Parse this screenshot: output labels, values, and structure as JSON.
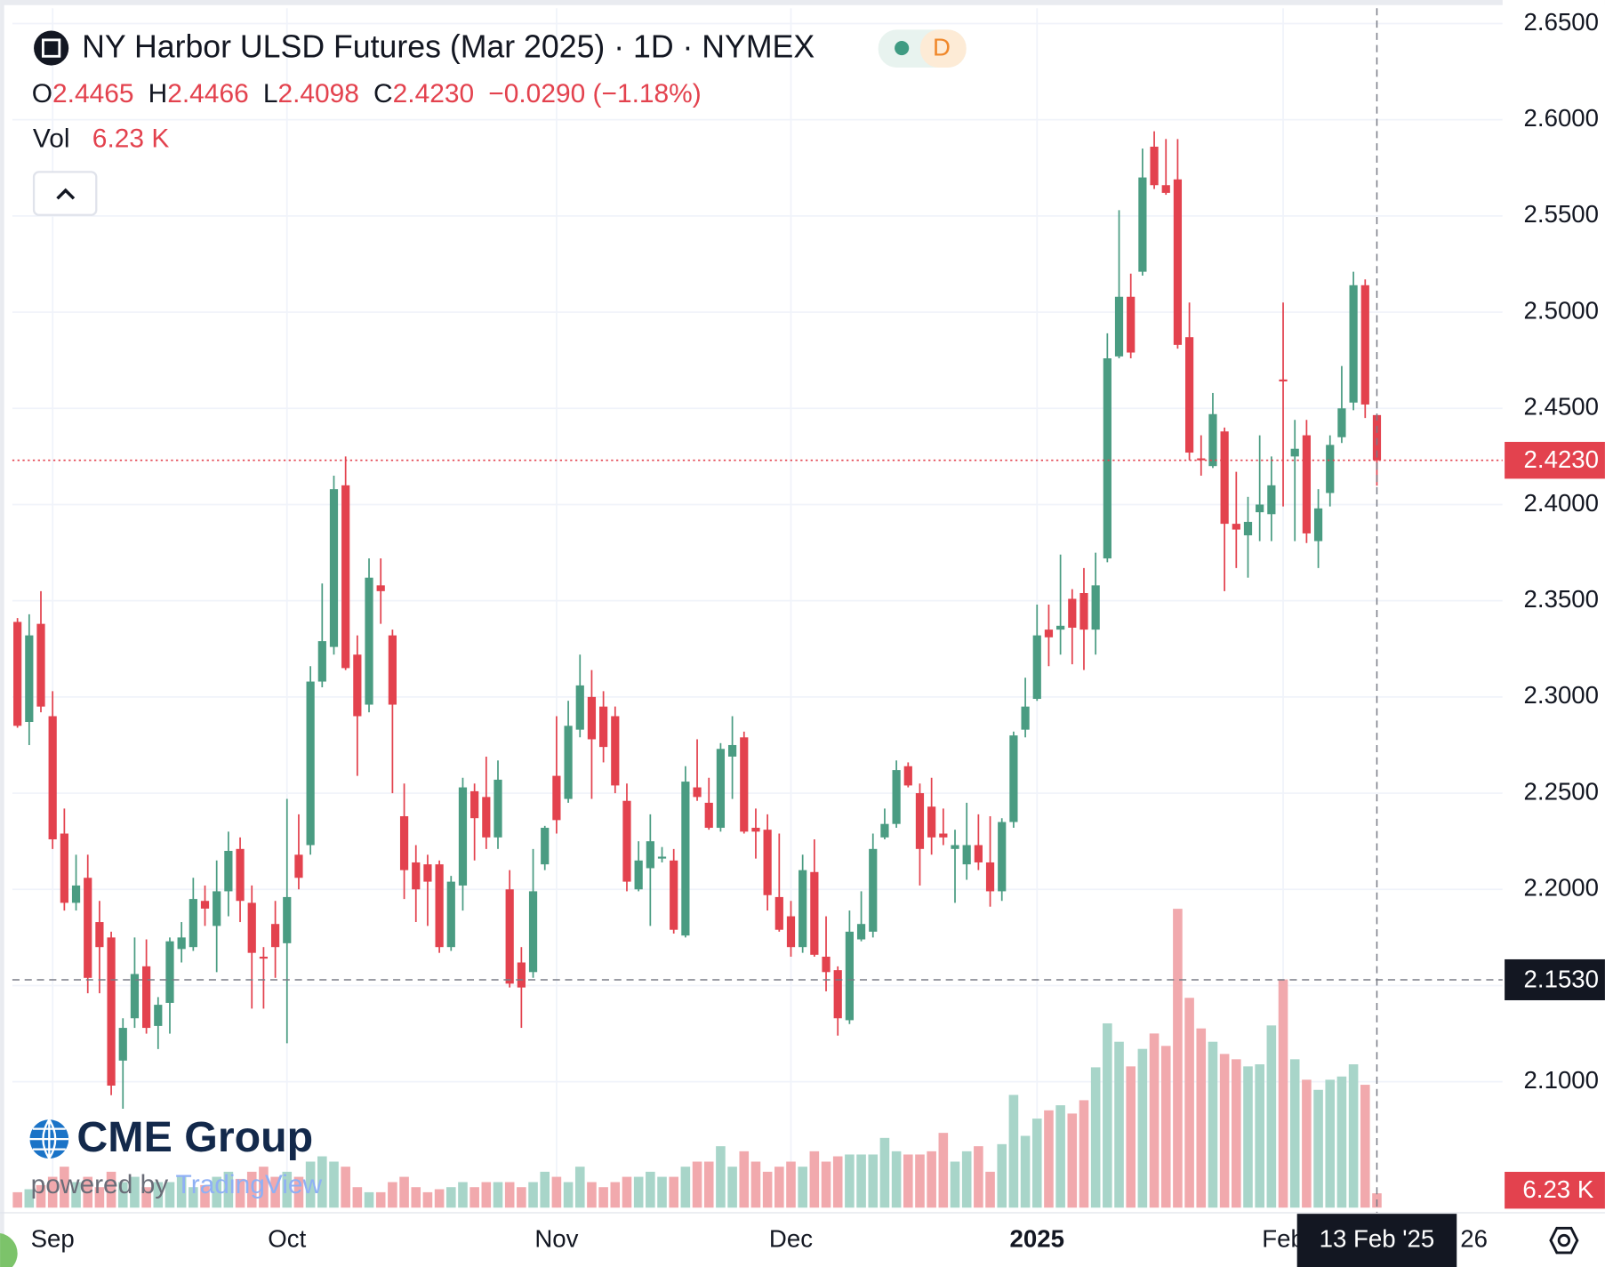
{
  "header": {
    "title": "NY Harbor ULSD Futures (Mar 2025) · 1D · NYMEX",
    "interval_badge": "D",
    "legend": {
      "ohlc": [
        {
          "key": "O",
          "value": "2.4465"
        },
        {
          "key": "H",
          "value": "2.4466"
        },
        {
          "key": "L",
          "value": "2.4098"
        },
        {
          "key": "C",
          "value": "2.4230"
        }
      ],
      "change": "−0.0290 (−1.18%)",
      "vol_key": "Vol"
    }
  },
  "watermark": {
    "logo": "CME Group",
    "powered_by": "powered by",
    "brand": "TradingView"
  },
  "chart_data": {
    "type": "candlestick",
    "up_color": "#4a9c82",
    "down_color": "#e3424e",
    "up_volume_color": "#a8d5c9",
    "down_volume_color": "#f1a9ad",
    "ylim": [
      2.035,
      2.66
    ],
    "yticks": [
      {
        "value": 2.1,
        "label": "2.1000"
      },
      {
        "value": 2.15,
        "label": "2.1500"
      },
      {
        "value": 2.2,
        "label": "2.2000"
      },
      {
        "value": 2.25,
        "label": "2.2500"
      },
      {
        "value": 2.3,
        "label": "2.3000"
      },
      {
        "value": 2.35,
        "label": "2.3500"
      },
      {
        "value": 2.4,
        "label": "2.4000"
      },
      {
        "value": 2.45,
        "label": "2.4500"
      },
      {
        "value": 2.5,
        "label": "2.5000"
      },
      {
        "value": 2.55,
        "label": "2.5500"
      },
      {
        "value": 2.6,
        "label": "2.6000"
      },
      {
        "value": 2.65,
        "label": "2.6500"
      }
    ],
    "grid": true,
    "categories": [
      null,
      null,
      null,
      "Sep",
      null,
      null,
      null,
      null,
      null,
      null,
      null,
      null,
      null,
      null,
      null,
      null,
      null,
      null,
      null,
      null,
      null,
      null,
      null,
      "Oct",
      null,
      null,
      null,
      null,
      null,
      null,
      null,
      null,
      null,
      null,
      null,
      null,
      null,
      null,
      null,
      null,
      null,
      null,
      null,
      null,
      null,
      null,
      "Nov",
      null,
      null,
      null,
      null,
      null,
      null,
      null,
      null,
      null,
      null,
      null,
      null,
      null,
      null,
      null,
      null,
      null,
      null,
      null,
      "Dec",
      null,
      null,
      null,
      null,
      null,
      null,
      null,
      null,
      null,
      null,
      null,
      null,
      null,
      null,
      null,
      null,
      null,
      null,
      null,
      null,
      "2025",
      null,
      null,
      null,
      null,
      null,
      null,
      null,
      null,
      null,
      null,
      null,
      null,
      null,
      null,
      null,
      null,
      null,
      null,
      null,
      null,
      "Feb",
      null,
      null,
      null,
      null,
      null,
      null,
      null,
      null
    ],
    "extra_x_label": "26",
    "open": [
      2.339,
      2.287,
      2.338,
      2.29,
      2.229,
      2.193,
      2.206,
      2.183,
      2.175,
      2.111,
      2.133,
      2.16,
      2.129,
      2.141,
      2.169,
      2.17,
      2.194,
      2.181,
      2.199,
      2.221,
      2.193,
      2.165,
      2.182,
      2.172,
      2.218,
      2.223,
      2.308,
      2.326,
      2.41,
      2.322,
      2.296,
      2.358,
      2.332,
      2.238,
      2.214,
      2.213,
      2.213,
      2.17,
      2.202,
      2.251,
      2.248,
      2.227,
      2.2,
      2.162,
      2.157,
      2.213,
      2.259,
      2.247,
      2.283,
      2.3,
      2.295,
      2.29,
      2.246,
      2.2,
      2.211,
      2.216,
      2.215,
      2.176,
      2.253,
      2.245,
      2.232,
      2.269,
      2.279,
      2.232,
      2.231,
      2.196,
      2.186,
      2.17,
      2.209,
      2.165,
      2.158,
      2.132,
      2.174,
      2.178,
      2.227,
      2.234,
      2.264,
      2.25,
      2.243,
      2.229,
      2.221,
      2.213,
      2.223,
      2.214,
      2.199,
      2.235,
      2.283,
      2.299,
      2.335,
      2.335,
      2.351,
      2.354,
      2.335,
      2.372,
      2.477,
      2.508,
      2.521,
      2.586,
      2.566,
      2.569,
      2.487,
      2.424,
      2.42,
      2.438,
      2.39,
      2.384,
      2.396,
      2.395,
      2.465,
      2.425,
      2.436,
      2.381,
      2.406,
      2.435,
      2.453,
      2.514,
      2.4465
    ],
    "high": [
      2.341,
      2.343,
      2.355,
      2.303,
      2.242,
      2.218,
      2.218,
      2.194,
      2.178,
      2.133,
      2.175,
      2.174,
      2.144,
      2.175,
      2.183,
      2.206,
      2.202,
      2.215,
      2.23,
      2.227,
      2.202,
      2.17,
      2.194,
      2.247,
      2.239,
      2.316,
      2.359,
      2.415,
      2.425,
      2.332,
      2.372,
      2.372,
      2.335,
      2.255,
      2.223,
      2.218,
      2.215,
      2.207,
      2.258,
      2.255,
      2.269,
      2.267,
      2.21,
      2.17,
      2.221,
      2.233,
      2.29,
      2.298,
      2.322,
      2.314,
      2.303,
      2.295,
      2.255,
      2.225,
      2.239,
      2.222,
      2.221,
      2.264,
      2.278,
      2.258,
      2.276,
      2.29,
      2.282,
      2.242,
      2.239,
      2.229,
      2.194,
      2.218,
      2.226,
      2.186,
      2.16,
      2.189,
      2.199,
      2.229,
      2.242,
      2.267,
      2.266,
      2.255,
      2.258,
      2.242,
      2.231,
      2.245,
      2.239,
      2.238,
      2.237,
      2.282,
      2.31,
      2.348,
      2.348,
      2.374,
      2.356,
      2.367,
      2.375,
      2.489,
      2.553,
      2.52,
      2.585,
      2.594,
      2.59,
      2.59,
      2.505,
      2.436,
      2.458,
      2.44,
      2.417,
      2.404,
      2.436,
      2.425,
      2.505,
      2.444,
      2.444,
      2.408,
      2.436,
      2.472,
      2.521,
      2.517,
      2.4466
    ],
    "low": [
      2.284,
      2.275,
      2.292,
      2.221,
      2.189,
      2.189,
      2.146,
      2.146,
      2.093,
      2.086,
      2.128,
      2.125,
      2.117,
      2.125,
      2.162,
      2.168,
      2.181,
      2.157,
      2.186,
      2.183,
      2.138,
      2.138,
      2.154,
      2.12,
      2.2,
      2.218,
      2.305,
      2.322,
      2.314,
      2.259,
      2.292,
      2.338,
      2.25,
      2.195,
      2.183,
      2.181,
      2.167,
      2.168,
      2.189,
      2.215,
      2.221,
      2.221,
      2.149,
      2.128,
      2.154,
      2.21,
      2.229,
      2.245,
      2.279,
      2.247,
      2.266,
      2.25,
      2.199,
      2.199,
      2.181,
      2.214,
      2.177,
      2.175,
      2.246,
      2.231,
      2.23,
      2.247,
      2.229,
      2.216,
      2.189,
      2.178,
      2.165,
      2.167,
      2.165,
      2.147,
      2.124,
      2.13,
      2.173,
      2.175,
      2.226,
      2.232,
      2.253,
      2.202,
      2.218,
      2.223,
      2.193,
      2.205,
      2.21,
      2.191,
      2.194,
      2.232,
      2.279,
      2.298,
      2.316,
      2.322,
      2.317,
      2.314,
      2.322,
      2.37,
      2.476,
      2.476,
      2.519,
      2.564,
      2.561,
      2.481,
      2.423,
      2.415,
      2.419,
      2.355,
      2.367,
      2.362,
      2.381,
      2.381,
      2.399,
      2.381,
      2.38,
      2.367,
      2.399,
      2.432,
      2.449,
      2.445,
      2.4098
    ],
    "close": [
      2.285,
      2.332,
      2.295,
      2.226,
      2.193,
      2.202,
      2.154,
      2.17,
      2.098,
      2.128,
      2.156,
      2.128,
      2.14,
      2.173,
      2.175,
      2.195,
      2.19,
      2.199,
      2.22,
      2.194,
      2.167,
      2.164,
      2.17,
      2.196,
      2.206,
      2.308,
      2.329,
      2.408,
      2.315,
      2.29,
      2.362,
      2.355,
      2.296,
      2.21,
      2.2,
      2.204,
      2.17,
      2.204,
      2.253,
      2.237,
      2.227,
      2.257,
      2.151,
      2.149,
      2.199,
      2.232,
      2.236,
      2.285,
      2.306,
      2.278,
      2.274,
      2.254,
      2.204,
      2.215,
      2.225,
      2.217,
      2.179,
      2.256,
      2.248,
      2.232,
      2.273,
      2.275,
      2.23,
      2.23,
      2.197,
      2.179,
      2.17,
      2.21,
      2.166,
      2.157,
      2.133,
      2.178,
      2.182,
      2.221,
      2.234,
      2.262,
      2.254,
      2.221,
      2.227,
      2.227,
      2.223,
      2.223,
      2.214,
      2.199,
      2.235,
      2.28,
      2.295,
      2.332,
      2.331,
      2.337,
      2.336,
      2.335,
      2.358,
      2.476,
      2.508,
      2.479,
      2.57,
      2.566,
      2.562,
      2.483,
      2.427,
      2.423,
      2.447,
      2.39,
      2.387,
      2.391,
      2.4,
      2.41,
      2.464,
      2.429,
      2.385,
      2.398,
      2.431,
      2.45,
      2.514,
      2.452,
      2.423
    ],
    "volume": [
      6700,
      8000,
      9800,
      13400,
      17800,
      11100,
      13400,
      8900,
      15600,
      11100,
      13400,
      8900,
      11100,
      11100,
      13400,
      8900,
      9800,
      13400,
      15600,
      12500,
      15600,
      17800,
      13400,
      15600,
      13400,
      20000,
      22300,
      20000,
      17800,
      8900,
      6700,
      6700,
      11100,
      13400,
      8900,
      6700,
      8000,
      8900,
      11100,
      8900,
      11100,
      11100,
      11100,
      8900,
      11100,
      15600,
      13400,
      11100,
      17800,
      11100,
      8900,
      11100,
      13400,
      13400,
      15600,
      13400,
      13400,
      17800,
      20000,
      20000,
      26700,
      17800,
      24500,
      20000,
      15600,
      17800,
      20000,
      17800,
      24500,
      20000,
      22300,
      23100,
      23100,
      23100,
      30300,
      24500,
      23100,
      23100,
      24500,
      32500,
      20000,
      24500,
      26700,
      15600,
      27600,
      49000,
      31200,
      38700,
      42300,
      44500,
      40900,
      46700,
      61000,
      80100,
      72100,
      61400,
      69000,
      75700,
      70300,
      129900,
      91200,
      77900,
      72100,
      66800,
      64500,
      61400,
      62300,
      79200,
      99200,
      64500,
      55600,
      51200,
      55600,
      57000,
      62300,
      53400,
      6230
    ],
    "volume_label": "6.23 K",
    "last_price": {
      "value": 2.423,
      "label": "2.4230"
    },
    "crosshair": {
      "price": {
        "value": 2.153,
        "label": "2.1530"
      },
      "date": "13 Feb '25"
    }
  }
}
